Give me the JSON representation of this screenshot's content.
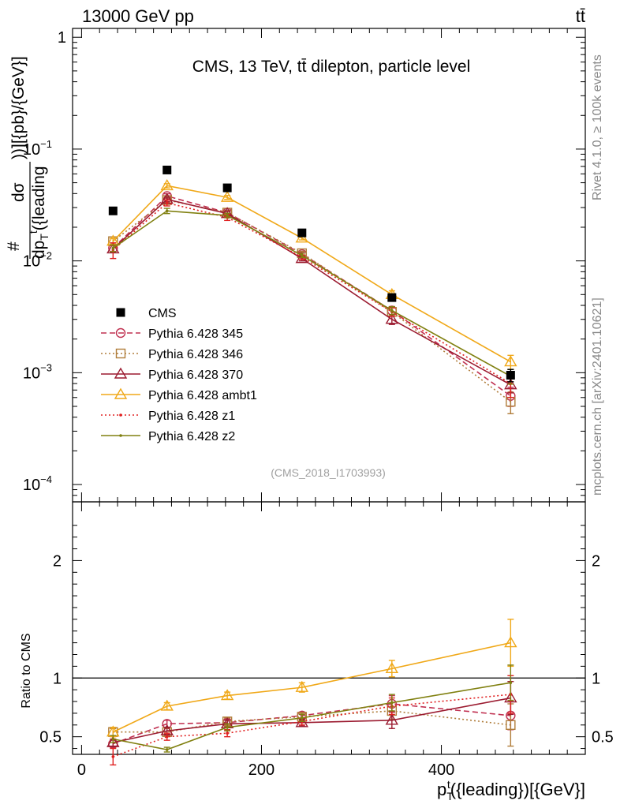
{
  "header": {
    "energy_label": "13000 GeV pp",
    "process_label": "tt̄"
  },
  "side_text": {
    "rivet": "Rivet 4.1.0, ≥ 100k events",
    "site": "mcplots.cern.ch [arXiv:2401.10621]"
  },
  "chart_data": [
    {
      "type": "scatter",
      "panel": "main",
      "title": "CMS, 13 TeV, tt̄ dilepton, particle level",
      "watermark": "(CMS_2018_I1703993)",
      "ylabel": "#  dσ / dpTt({leading})  )][{pb}/{GeV}]",
      "ylabel_parts": {
        "num": "dσ",
        "den": "dp",
        "den_sub": "T",
        "den_sup": "t",
        "den_tail": "({leading",
        "right": "))][{pb}/{GeV}]",
        "hash": "#"
      },
      "yscale": "log",
      "ylim": [
        7e-05,
        1.2
      ],
      "xlim": [
        -10,
        560
      ],
      "yticks": [
        {
          "value": 1,
          "label": "1"
        },
        {
          "value": 0.1,
          "label": "10",
          "exp": "−1"
        },
        {
          "value": 0.01,
          "label": "10",
          "exp": "−2"
        },
        {
          "value": 0.001,
          "label": "10",
          "exp": "−3"
        },
        {
          "value": 0.0001,
          "label": "10",
          "exp": "−4"
        }
      ],
      "x": [
        35,
        95,
        162,
        245,
        345,
        477
      ],
      "series": [
        {
          "name": "CMS",
          "color": "#000000",
          "style": "data",
          "marker": "square",
          "values": [
            0.028,
            0.065,
            0.045,
            0.0178,
            0.0047,
            0.00095
          ],
          "errors": [
            0,
            0,
            0,
            0,
            0.0003,
            0.00012
          ]
        },
        {
          "name": "Pythia 6.428 345",
          "color": "#c03050",
          "style": "dashed",
          "marker": "circle",
          "values": [
            0.013,
            0.038,
            0.027,
            0.0115,
            0.0036,
            0.00062
          ],
          "errors": [
            0.0009,
            0.0018,
            0.0012,
            0.0005,
            0.0003,
            0.00012
          ]
        },
        {
          "name": "Pythia 6.428 346",
          "color": "#b07d3a",
          "style": "dotted",
          "marker": "square-open",
          "values": [
            0.015,
            0.035,
            0.027,
            0.0117,
            0.0035,
            0.00055
          ],
          "errors": [
            0.0009,
            0.0017,
            0.0012,
            0.0005,
            0.0003,
            0.00012
          ]
        },
        {
          "name": "Pythia 6.428 370",
          "color": "#9b1b30",
          "style": "solid",
          "marker": "triangle",
          "values": [
            0.0128,
            0.0355,
            0.0265,
            0.0105,
            0.003,
            0.00078
          ],
          "errors": [
            0.0009,
            0.0017,
            0.0012,
            0.0005,
            0.0003,
            0.00012
          ]
        },
        {
          "name": "Pythia 6.428 ambt1",
          "color": "#f0a818",
          "style": "solid",
          "marker": "triangle",
          "values": [
            0.015,
            0.047,
            0.037,
            0.016,
            0.005,
            0.00125
          ],
          "errors": [
            0.0009,
            0.002,
            0.0015,
            0.0006,
            0.0004,
            0.00018
          ]
        },
        {
          "name": "Pythia 6.428 z1",
          "color": "#e02020",
          "style": "dotted",
          "marker": "dot",
          "values": [
            0.0125,
            0.033,
            0.0245,
            0.0108,
            0.0035,
            0.0008
          ],
          "errors": [
            0.002,
            0.002,
            0.0015,
            0.0005,
            0.0003,
            0.0002
          ]
        },
        {
          "name": "Pythia 6.428 z2",
          "color": "#808010",
          "style": "solid",
          "marker": "dot",
          "values": [
            0.013,
            0.028,
            0.0255,
            0.0112,
            0.0036,
            0.00093
          ],
          "errors": [
            0.0009,
            0.0015,
            0.0012,
            0.0005,
            0.0003,
            0.00014
          ]
        }
      ]
    },
    {
      "type": "line",
      "panel": "ratio",
      "ylabel": "Ratio to CMS",
      "xlabel": "pTt({leading})[{GeV}]",
      "xlabel_parts": {
        "base": "p",
        "sub": "T",
        "sup": "t",
        "tail": "({leading})[{GeV}]"
      },
      "ylim": [
        0.35,
        2.5
      ],
      "xlim": [
        -10,
        560
      ],
      "yticks": [
        0.5,
        1,
        2
      ],
      "xticks": [
        0,
        200,
        400
      ],
      "x": [
        35,
        95,
        162,
        245,
        345,
        477
      ],
      "series": [
        {
          "name": "Pythia 6.428 345",
          "color": "#c03050",
          "style": "dashed",
          "marker": "circle",
          "values": [
            0.44,
            0.61,
            0.62,
            0.68,
            0.78,
            0.68
          ],
          "errors": [
            0.03,
            0.03,
            0.03,
            0.03,
            0.07,
            0.12
          ]
        },
        {
          "name": "Pythia 6.428 346",
          "color": "#b07d3a",
          "style": "dotted",
          "marker": "square-open",
          "values": [
            0.54,
            0.54,
            0.63,
            0.67,
            0.72,
            0.6
          ],
          "errors": [
            0.03,
            0.03,
            0.03,
            0.03,
            0.07,
            0.18
          ]
        },
        {
          "name": "Pythia 6.428 370",
          "color": "#9b1b30",
          "style": "solid",
          "marker": "triangle",
          "values": [
            0.45,
            0.55,
            0.61,
            0.62,
            0.64,
            0.83
          ],
          "errors": [
            0.03,
            0.03,
            0.03,
            0.03,
            0.07,
            0.14
          ]
        },
        {
          "name": "Pythia 6.428 ambt1",
          "color": "#f0a818",
          "style": "solid",
          "marker": "triangle",
          "values": [
            0.54,
            0.76,
            0.85,
            0.92,
            1.08,
            1.3
          ],
          "errors": [
            0.04,
            0.03,
            0.03,
            0.04,
            0.07,
            0.2
          ]
        },
        {
          "name": "Pythia 6.428 z1",
          "color": "#e02020",
          "style": "dotted",
          "marker": "dot",
          "values": [
            0.33,
            0.5,
            0.53,
            0.63,
            0.76,
            0.86
          ],
          "errors": [
            0.07,
            0.03,
            0.03,
            0.03,
            0.07,
            0.16
          ]
        },
        {
          "name": "Pythia 6.428 z2",
          "color": "#808010",
          "style": "solid",
          "marker": "dot",
          "values": [
            0.48,
            0.39,
            0.58,
            0.66,
            0.79,
            0.96
          ],
          "errors": [
            0.03,
            0.02,
            0.03,
            0.03,
            0.07,
            0.15
          ]
        }
      ]
    }
  ]
}
